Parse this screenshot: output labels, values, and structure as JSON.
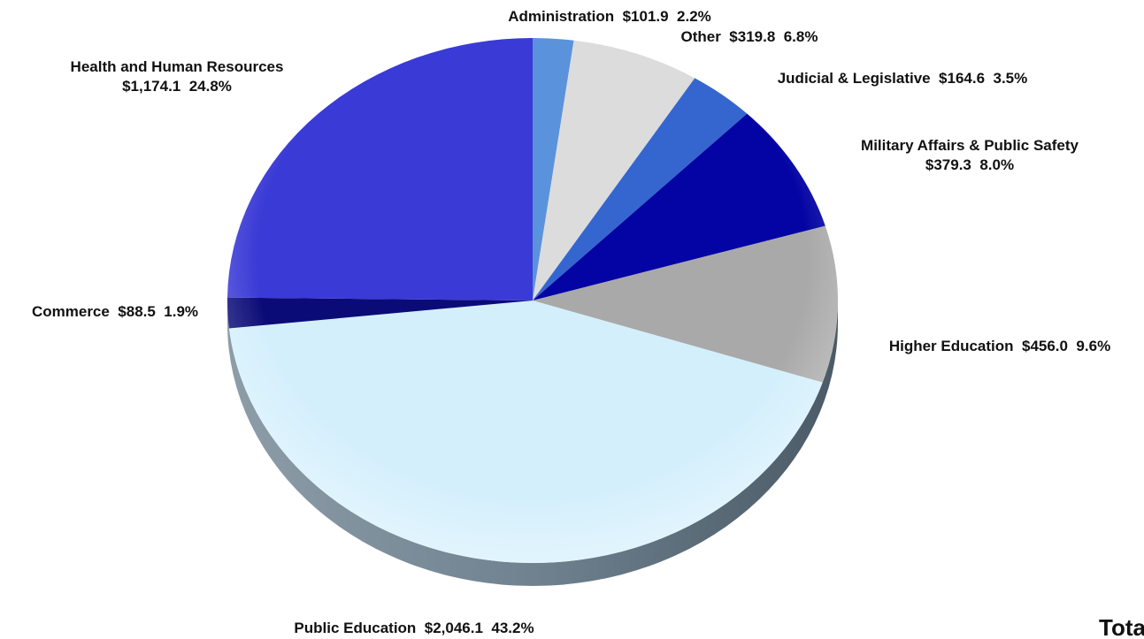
{
  "chart_data": {
    "type": "pie",
    "total_label": "Total",
    "slices": [
      {
        "name": "Administration",
        "value": 101.9,
        "percent": 2.2,
        "value_text": "$101.9",
        "percent_text": "2.2%",
        "color": "#5a93db"
      },
      {
        "name": "Other",
        "value": 319.8,
        "percent": 6.8,
        "value_text": "$319.8",
        "percent_text": "6.8%",
        "color": "#dcdcdc"
      },
      {
        "name": "Judicial & Legislative",
        "value": 164.6,
        "percent": 3.5,
        "value_text": "$164.6",
        "percent_text": "3.5%",
        "color": "#3566cf"
      },
      {
        "name": "Military Affairs & Public Safety",
        "value": 379.3,
        "percent": 8.0,
        "value_text": "$379.3",
        "percent_text": "8.0%",
        "color": "#0404a4"
      },
      {
        "name": "Higher Education",
        "value": 456.0,
        "percent": 9.6,
        "value_text": "$456.0",
        "percent_text": "9.6%",
        "color": "#a9a9a9"
      },
      {
        "name": "Public Education",
        "value": 2046.1,
        "percent": 43.2,
        "value_text": "$2,046.1",
        "percent_text": "43.2%",
        "color": "#d3effc"
      },
      {
        "name": "Commerce",
        "value": 88.5,
        "percent": 1.9,
        "value_text": "$88.5",
        "percent_text": "1.9%",
        "color": "#0b0b78"
      },
      {
        "name": "Health and Human Resources",
        "value": 1174.1,
        "percent": 24.8,
        "value_text": "$1,174.1",
        "percent_text": "24.8%",
        "color": "#3a3ad6"
      }
    ]
  }
}
